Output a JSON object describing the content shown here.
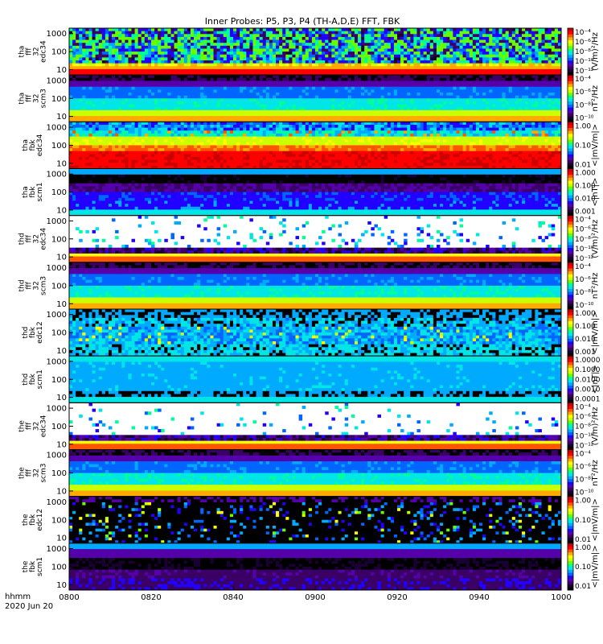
{
  "chart_data": {
    "type": "heatmap",
    "title": "Inner Probes: P5, P3, P4 (TH-A,D,E) FFT, FBK",
    "x": {
      "ticks": [
        "0800",
        "0820",
        "0840",
        "0900",
        "0920",
        "0940",
        "1000"
      ],
      "range_minutes": [
        0,
        120
      ]
    },
    "footer": {
      "units": "hhmm",
      "date": "2020 Jun 20"
    },
    "panels": [
      {
        "label": [
          "tha",
          "fff",
          "32",
          "edc34"
        ],
        "yticks": [
          "1000",
          "100",
          "10"
        ],
        "yrange": [
          5,
          2000
        ],
        "log": true,
        "cbar_ticks": [
          "10⁻⁴",
          "10⁻⁶",
          "10⁻⁸",
          "10⁻¹⁰",
          "10⁻¹²"
        ],
        "cbar_unit": "(V/m)²/Hz",
        "pattern": "fff_spiky"
      },
      {
        "label": [
          "tha",
          "fff",
          "32",
          "scm3"
        ],
        "yticks": [
          "1000",
          "100",
          "10"
        ],
        "yrange": [
          5,
          2000
        ],
        "log": true,
        "cbar_ticks": [
          "10⁻⁴",
          "10⁻⁶",
          "10⁻⁸",
          "10⁻¹⁰"
        ],
        "cbar_unit": "nT²/Hz",
        "pattern": "scm_fff"
      },
      {
        "label": [
          "tha",
          "fbk",
          "edc34"
        ],
        "yticks": [
          "1000",
          "100",
          "10"
        ],
        "yrange": [
          5,
          2000
        ],
        "log": true,
        "cbar_ticks": [
          "1.00",
          "0.10",
          "0.01"
        ],
        "cbar_unit": "<|mV/m|>",
        "pattern": "fbk_edc_hot"
      },
      {
        "label": [
          "tha",
          "fbk",
          "scm1"
        ],
        "yticks": [
          "1000",
          "100",
          "10"
        ],
        "yrange": [
          5,
          2000
        ],
        "log": true,
        "cbar_ticks": [
          "1.000",
          "0.100",
          "0.010",
          "0.001"
        ],
        "cbar_unit": "<|nT|>",
        "pattern": "fbk_scm"
      },
      {
        "label": [
          "thd",
          "fff",
          "32",
          "edc34"
        ],
        "yticks": [
          "1000",
          "100",
          "10"
        ],
        "yrange": [
          5,
          2000
        ],
        "log": true,
        "cbar_ticks": [
          "10⁻⁴",
          "10⁻⁶",
          "10⁻⁸",
          "10⁻¹⁰",
          "10⁻¹²"
        ],
        "cbar_unit": "(V/m)²/Hz",
        "pattern": "fff_sparse"
      },
      {
        "label": [
          "thd",
          "fff",
          "32",
          "scm3"
        ],
        "yticks": [
          "1000",
          "100",
          "10"
        ],
        "yrange": [
          5,
          2000
        ],
        "log": true,
        "cbar_ticks": [
          "10⁻⁴",
          "10⁻⁶",
          "10⁻⁸",
          "10⁻¹⁰"
        ],
        "cbar_unit": "nT²/Hz",
        "pattern": "scm_fff"
      },
      {
        "label": [
          "thd",
          "fbk",
          "edc12"
        ],
        "yticks": [
          "1000",
          "100",
          "10"
        ],
        "yrange": [
          5,
          2000
        ],
        "log": true,
        "cbar_ticks": [
          "1.000",
          "0.100",
          "0.010",
          "0.001"
        ],
        "cbar_unit": "<|mV/m|>",
        "pattern": "fbk_edc_mixed"
      },
      {
        "label": [
          "thd",
          "fbk",
          "scm1"
        ],
        "yticks": [
          "1000",
          "100",
          "10"
        ],
        "yrange": [
          5,
          2000
        ],
        "log": true,
        "cbar_ticks": [
          "1.0000",
          "0.1000",
          "0.0100",
          "0.0010",
          "0.0001"
        ],
        "cbar_unit": "<|nT|>",
        "pattern": "fbk_scm_uniform"
      },
      {
        "label": [
          "the",
          "fff",
          "32",
          "edc34"
        ],
        "yticks": [
          "1000",
          "100",
          "10"
        ],
        "yrange": [
          5,
          2000
        ],
        "log": true,
        "cbar_ticks": [
          "10⁻⁴",
          "10⁻⁶",
          "10⁻⁸",
          "10⁻¹⁰",
          "10⁻¹²"
        ],
        "cbar_unit": "(V/m)²/Hz",
        "pattern": "fff_sparse2"
      },
      {
        "label": [
          "the",
          "fff",
          "32",
          "scm3"
        ],
        "yticks": [
          "1000",
          "100",
          "10"
        ],
        "yrange": [
          5,
          2000
        ],
        "log": true,
        "cbar_ticks": [
          "10⁻⁴",
          "10⁻⁶",
          "10⁻⁸",
          "10⁻¹⁰"
        ],
        "cbar_unit": "nT²/Hz",
        "pattern": "scm_fff"
      },
      {
        "label": [
          "the",
          "fbk",
          "edc12"
        ],
        "yticks": [
          "1000",
          "100",
          "10"
        ],
        "yrange": [
          5,
          2000
        ],
        "log": true,
        "cbar_ticks": [
          "1.00",
          "0.10",
          "0.01"
        ],
        "cbar_unit": "<|mV/m|>",
        "pattern": "fbk_edc_dark"
      },
      {
        "label": [
          "the",
          "fbk",
          "scm1"
        ],
        "yticks": [
          "1000",
          "100",
          "10"
        ],
        "yrange": [
          5,
          2000
        ],
        "log": true,
        "cbar_ticks": [
          "1.00",
          "0.10",
          "0.01"
        ],
        "cbar_unit": "<|mV/m|>",
        "pattern": "fbk_scm_bands"
      }
    ],
    "colors": {
      "colormap": [
        "#000000",
        "#1a0033",
        "#3a0066",
        "#5500aa",
        "#2200ff",
        "#0066ff",
        "#00aaff",
        "#00e5e5",
        "#00ff99",
        "#66ff00",
        "#ccff00",
        "#ffff00",
        "#ffaa00",
        "#ff5500",
        "#ff0000",
        "#cc0000"
      ],
      "frame": "#000000",
      "background": "#ffffff"
    },
    "grid": false
  }
}
